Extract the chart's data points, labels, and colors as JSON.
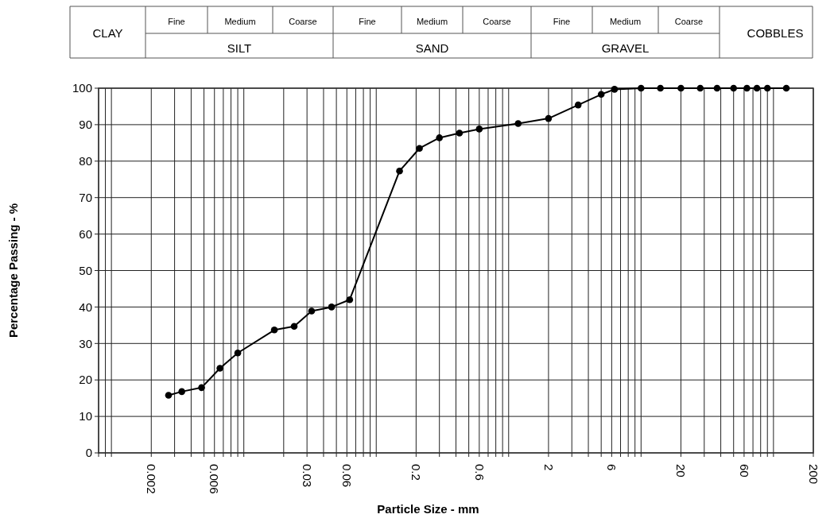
{
  "chart_data": {
    "type": "line",
    "xlabel": "Particle Size  -  mm",
    "ylabel": "Percentage Passing  -  %",
    "annotations": [
      "CLAY",
      "Fine",
      "Medium",
      "Coarse",
      "SILT",
      "Fine",
      "Medium",
      "Coarse",
      "SAND",
      "Fine",
      "Medium",
      "Coarse",
      "GRAVEL",
      "COBBLES"
    ],
    "series": [
      {
        "color": "#000000",
        "x": [
          0.0027,
          0.0034,
          0.0048,
          0.0066,
          0.009,
          0.017,
          0.024,
          0.0325,
          0.046,
          0.063,
          0.15,
          0.212,
          0.3,
          0.425,
          0.6,
          1.18,
          2,
          3.35,
          5,
          6.3,
          10,
          14,
          20,
          28,
          37.5,
          50,
          63,
          75,
          90,
          125
        ],
        "values": [
          15.8,
          16.8,
          17.9,
          23.2,
          27.4,
          33.7,
          34.7,
          38.9,
          40,
          42,
          77.3,
          83.5,
          86.4,
          87.7,
          88.8,
          90.3,
          91.7,
          95.4,
          98.3,
          99.7,
          100,
          100,
          100,
          100,
          100,
          100,
          100,
          100,
          100,
          100
        ]
      }
    ],
    "log": "x",
    "marker": "circle",
    "line_style": "solid",
    "grid": true,
    "xlim": [
      0.0008,
      200
    ],
    "xticks": [
      {
        "value": 0.0008,
        "label": null
      },
      {
        "value": 0.0009,
        "label": null
      },
      {
        "value": 0.001,
        "label": null
      },
      0.002,
      {
        "value": 0.003,
        "label": null
      },
      {
        "value": 0.004,
        "label": null
      },
      {
        "value": 0.005,
        "label": null
      },
      0.006,
      {
        "value": 0.007,
        "label": null
      },
      {
        "value": 0.008,
        "label": null
      },
      {
        "value": 0.009,
        "label": null
      },
      {
        "value": 0.01,
        "label": null
      },
      {
        "value": 0.02,
        "label": null
      },
      0.03,
      {
        "value": 0.04,
        "label": null
      },
      {
        "value": 0.05,
        "label": null
      },
      0.06,
      {
        "value": 0.07,
        "label": null
      },
      {
        "value": 0.08,
        "label": null
      },
      {
        "value": 0.09,
        "label": null
      },
      {
        "value": 0.1,
        "label": null
      },
      0.2,
      {
        "value": 0.3,
        "label": null
      },
      {
        "value": 0.4,
        "label": null
      },
      {
        "value": 0.5,
        "label": null
      },
      0.6,
      {
        "value": 0.7,
        "label": null
      },
      {
        "value": 0.8,
        "label": null
      },
      {
        "value": 0.9,
        "label": null
      },
      {
        "value": 1,
        "label": null
      },
      2,
      {
        "value": 3,
        "label": null
      },
      {
        "value": 4,
        "label": null
      },
      {
        "value": 5,
        "label": null
      },
      6,
      {
        "value": 7,
        "label": null
      },
      {
        "value": 8,
        "label": null
      },
      {
        "value": 9,
        "label": null
      },
      {
        "value": 10,
        "label": null
      },
      20,
      {
        "value": 30,
        "label": null
      },
      {
        "value": 40,
        "label": null
      },
      {
        "value": 50,
        "label": null
      },
      60,
      {
        "value": 70,
        "label": null
      },
      {
        "value": 80,
        "label": null
      },
      {
        "value": 90,
        "label": null
      },
      {
        "value": 100,
        "label": null
      },
      200
    ],
    "ylim": [
      0,
      100
    ],
    "yticks": [
      0,
      10,
      20,
      30,
      40,
      50,
      60,
      70,
      80,
      90,
      100
    ]
  }
}
